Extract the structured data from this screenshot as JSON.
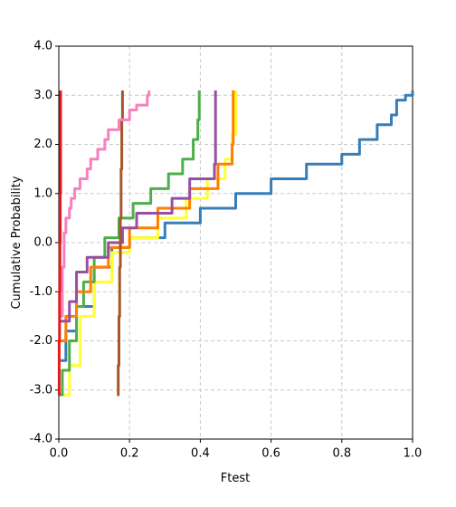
{
  "chart_data": {
    "type": "line",
    "step": true,
    "grid": true,
    "x_label": "Ftest",
    "y_label": "Cumulative Probability",
    "xlim": [
      0,
      1
    ],
    "ylim": [
      -4,
      4
    ],
    "xticks": [
      {
        "value": 0,
        "label": "0.0"
      },
      {
        "value": 0.2,
        "label": "0.2"
      },
      {
        "value": 0.4,
        "label": "0.4"
      },
      {
        "value": 0.6,
        "label": "0.6"
      },
      {
        "value": 0.8,
        "label": "0.8"
      },
      {
        "value": 1,
        "label": "1.0"
      }
    ],
    "yticks": [
      {
        "value": -4,
        "label": "-4.0"
      },
      {
        "value": -3,
        "label": "-3.0"
      },
      {
        "value": -2,
        "label": "-2.0"
      },
      {
        "value": -1,
        "label": "-1.0"
      },
      {
        "value": 0,
        "label": "0.0"
      },
      {
        "value": 1,
        "label": "1.0"
      },
      {
        "value": 2,
        "label": "2.0"
      },
      {
        "value": 3,
        "label": "3.0"
      },
      {
        "value": 4,
        "label": "4.0"
      }
    ],
    "series": [
      {
        "color": "#377eb8",
        "x": [
          0.005,
          0.02,
          0.05,
          0.1,
          0.15,
          0.2,
          0.3,
          0.4,
          0.5,
          0.6,
          0.7,
          0.8,
          0.85,
          0.9,
          0.94,
          0.955,
          0.98,
          1.0
        ],
        "values": [
          -2.4,
          -1.8,
          -1.3,
          -0.5,
          -0.1,
          0.1,
          0.4,
          0.7,
          1.0,
          1.3,
          1.6,
          1.8,
          2.1,
          2.4,
          2.6,
          2.9,
          3.0,
          3.1
        ]
      },
      {
        "color": "#ffff33",
        "x": [
          0.003,
          0.03,
          0.06,
          0.1,
          0.15,
          0.2,
          0.28,
          0.36,
          0.42,
          0.47,
          0.49,
          0.5
        ],
        "values": [
          -3.1,
          -2.5,
          -1.5,
          -0.8,
          -0.2,
          0.1,
          0.5,
          0.9,
          1.3,
          1.7,
          2.2,
          3.1
        ]
      },
      {
        "color": "#4daf4a",
        "x": [
          0.003,
          0.01,
          0.03,
          0.05,
          0.07,
          0.1,
          0.13,
          0.17,
          0.21,
          0.26,
          0.31,
          0.35,
          0.38,
          0.393,
          0.397
        ],
        "values": [
          -3.1,
          -2.6,
          -2,
          -1.3,
          -0.8,
          -0.3,
          0.1,
          0.5,
          0.8,
          1.1,
          1.4,
          1.7,
          2.1,
          2.5,
          3.1
        ]
      },
      {
        "color": "#ff7f00",
        "x": [
          0.003,
          0.02,
          0.05,
          0.09,
          0.14,
          0.2,
          0.28,
          0.37,
          0.45,
          0.49,
          0.493
        ],
        "values": [
          -2.0,
          -1.5,
          -1,
          -0.5,
          -0.1,
          0.3,
          0.7,
          1.1,
          1.6,
          2.0,
          3.1
        ]
      },
      {
        "color": "#984ea3",
        "x": [
          0.005,
          0.03,
          0.05,
          0.08,
          0.14,
          0.18,
          0.22,
          0.32,
          0.37,
          0.44,
          0.443
        ],
        "values": [
          -1.6,
          -1.2,
          -0.6,
          -0.3,
          0,
          0.3,
          0.6,
          0.9,
          1.3,
          1.6,
          3.1
        ]
      },
      {
        "color": "#a65628",
        "x": [
          0.165,
          0.168,
          0.17,
          0.172,
          0.174,
          0.176,
          0.178,
          0.18
        ],
        "values": [
          -3.1,
          -2.5,
          -1.5,
          -0.5,
          0.5,
          1.5,
          2.5,
          3.1
        ]
      },
      {
        "color": "#f781bf",
        "x": [
          0.005,
          0.01,
          0.015,
          0.02,
          0.03,
          0.035,
          0.045,
          0.06,
          0.08,
          0.09,
          0.11,
          0.13,
          0.14,
          0.17,
          0.2,
          0.22,
          0.25,
          0.255
        ],
        "values": [
          -1.5,
          -0.5,
          0.2,
          0.5,
          0.7,
          0.9,
          1.1,
          1.3,
          1.5,
          1.7,
          1.9,
          2.1,
          2.3,
          2.5,
          2.7,
          2.8,
          3.0,
          3.1
        ]
      },
      {
        "color": "#e41a1c",
        "x": [
          0,
          0.001,
          0.002,
          0.003,
          0.004,
          0.005
        ],
        "values": [
          -3.1,
          -2,
          -1,
          0,
          1,
          3.1
        ]
      }
    ]
  }
}
